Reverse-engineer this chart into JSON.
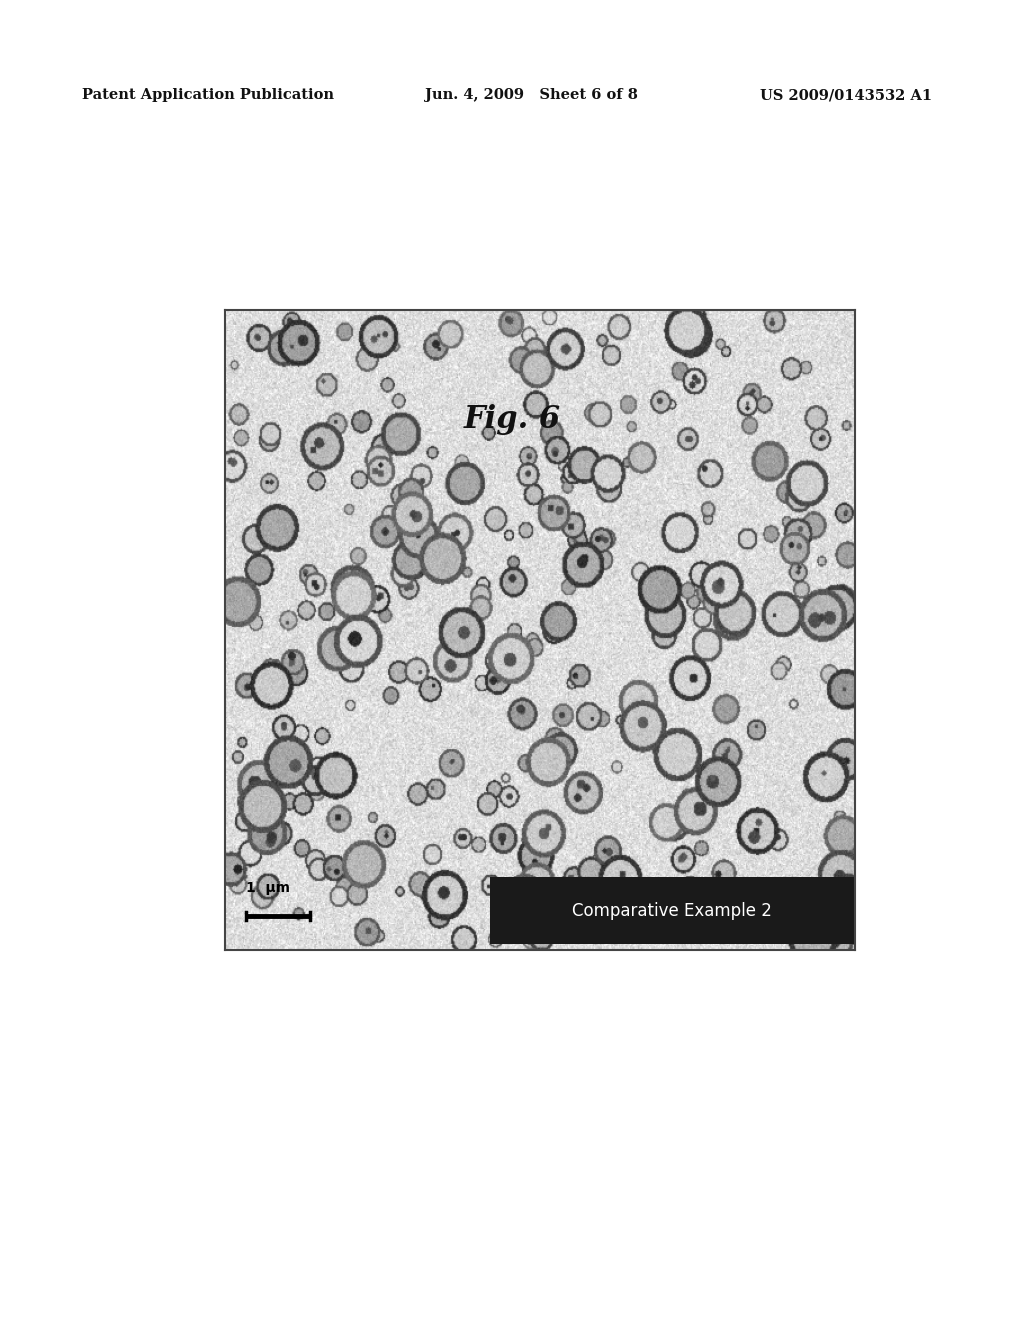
{
  "background_color": "#ffffff",
  "header_left": "Patent Application Publication",
  "header_mid": "Jun. 4, 2009   Sheet 6 of 8",
  "header_right": "US 2009/0143532 A1",
  "header_fontsize": 10.5,
  "fig_label": "Fig. 6",
  "fig_label_fontsize": 22,
  "scalebar_text": "1  μm",
  "overlay_text": "Comparative Example 2",
  "overlay_bg": "#1a1a1a",
  "overlay_text_color": "#ffffff"
}
